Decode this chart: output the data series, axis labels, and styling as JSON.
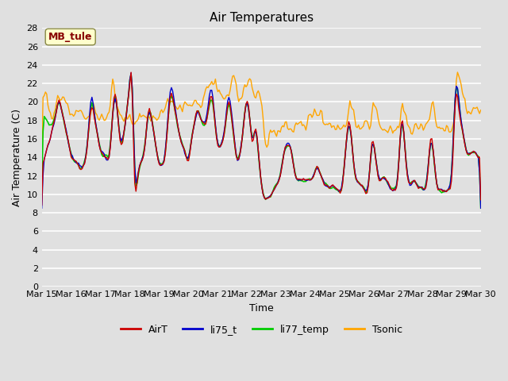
{
  "title": "Air Temperatures",
  "xlabel": "Time",
  "ylabel": "Air Temperature (C)",
  "ylim": [
    0,
    28
  ],
  "yticks": [
    0,
    2,
    4,
    6,
    8,
    10,
    12,
    14,
    16,
    18,
    20,
    22,
    24,
    26,
    28
  ],
  "series_colors": {
    "AirT": "#cc0000",
    "li75_t": "#0000cc",
    "li77_temp": "#00cc00",
    "Tsonic": "#ffa500"
  },
  "series_linewidths": {
    "AirT": 1.0,
    "li75_t": 1.0,
    "li77_temp": 1.2,
    "Tsonic": 1.0
  },
  "bg_color": "#e0e0e0",
  "plot_bg_color": "#e0e0e0",
  "grid_color": "#ffffff",
  "annotation_text": "MB_tule",
  "annotation_color": "#880000",
  "annotation_bg": "#ffffcc",
  "annotation_border": "#888844",
  "figsize": [
    6.4,
    4.8
  ],
  "dpi": 100,
  "xtick_labels": [
    "Mar 15",
    "Mar 16",
    "Mar 17",
    "Mar 18",
    "Mar 19",
    "Mar 20",
    "Mar 21",
    "Mar 22",
    "Mar 23",
    "Mar 24",
    "Mar 25",
    "Mar 26",
    "Mar 27",
    "Mar 28",
    "Mar 29",
    "Mar 30"
  ],
  "legend_entries": [
    "AirT",
    "li75_t",
    "li77_temp",
    "Tsonic"
  ]
}
